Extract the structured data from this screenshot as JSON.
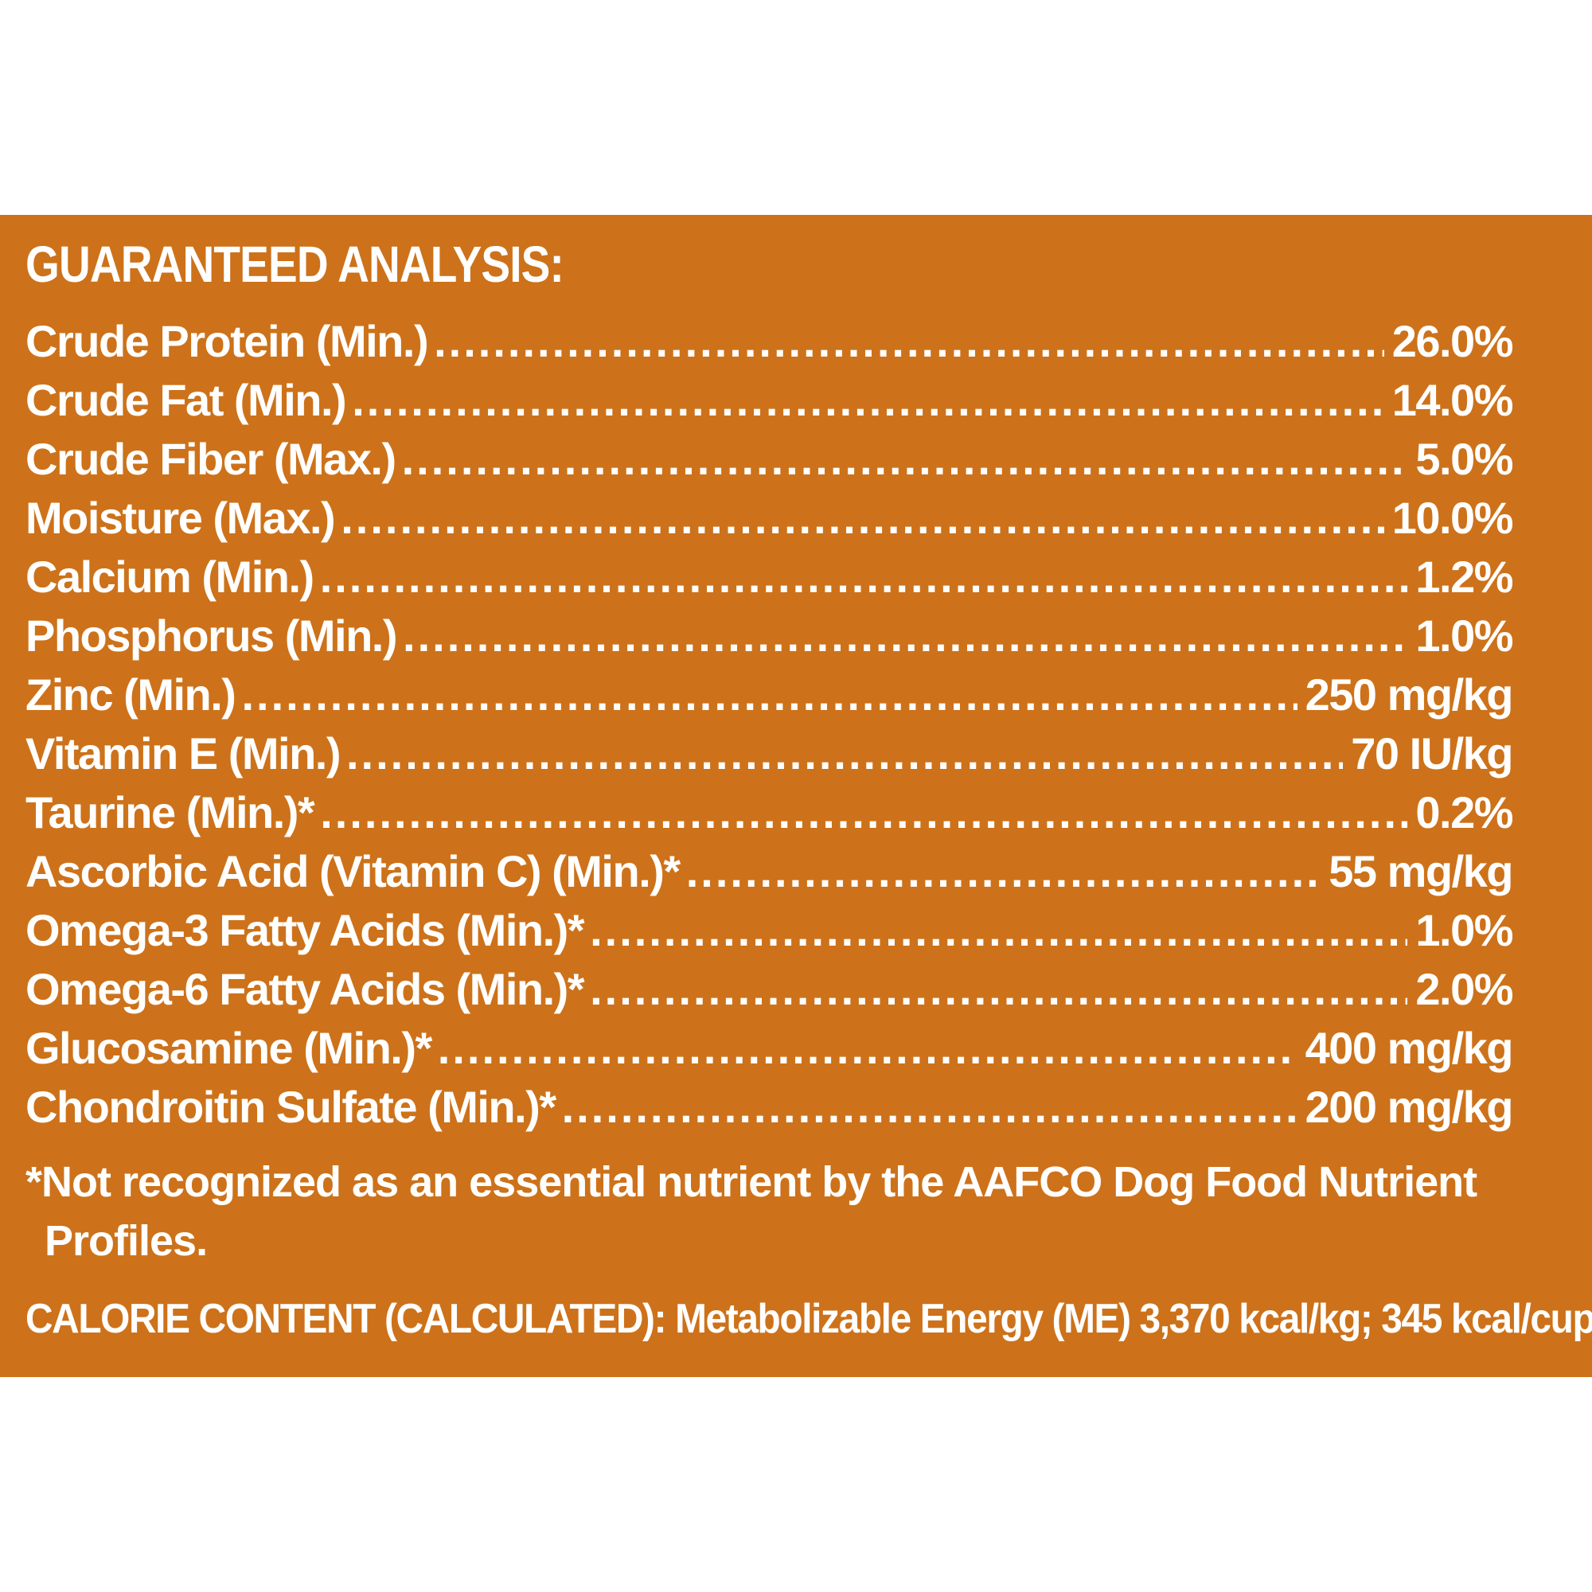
{
  "title": "GUARANTEED ANALYSIS:",
  "rows": [
    {
      "label": "Crude Protein (Min.)",
      "value": "26.0%"
    },
    {
      "label": "Crude Fat (Min.)",
      "value": "14.0%"
    },
    {
      "label": "Crude Fiber (Max.)",
      "value": "5.0%"
    },
    {
      "label": "Moisture (Max.)",
      "value": "10.0%"
    },
    {
      "label": "Calcium (Min.)",
      "value": "1.2%"
    },
    {
      "label": "Phosphorus (Min.)",
      "value": "1.0%"
    },
    {
      "label": "Zinc (Min.)",
      "value": "250 mg/kg"
    },
    {
      "label": "Vitamin E (Min.)",
      "value": "70 IU/kg"
    },
    {
      "label": "Taurine (Min.)*",
      "value": "0.2%"
    },
    {
      "label": "Ascorbic Acid (Vitamin C) (Min.)*",
      "value": "55 mg/kg"
    },
    {
      "label": "Omega-3 Fatty Acids (Min.)*",
      "value": "1.0%"
    },
    {
      "label": "Omega-6 Fatty Acids (Min.)*",
      "value": "2.0%"
    },
    {
      "label": "Glucosamine (Min.)*",
      "value": "400 mg/kg"
    },
    {
      "label": "Chondroitin Sulfate (Min.)*",
      "value": "200 mg/kg"
    }
  ],
  "footnote": {
    "line1": "*Not recognized as an essential nutrient by the AAFCO Dog Food Nutrient",
    "line2": "Profiles."
  },
  "calorie": "CALORIE CONTENT (CALCULATED): Metabolizable Energy (ME) 3,370 kcal/kg; 345 kcal/cup",
  "colors": {
    "panel": "#cd721a",
    "text": "#ffffff",
    "page": "#ffffff"
  }
}
